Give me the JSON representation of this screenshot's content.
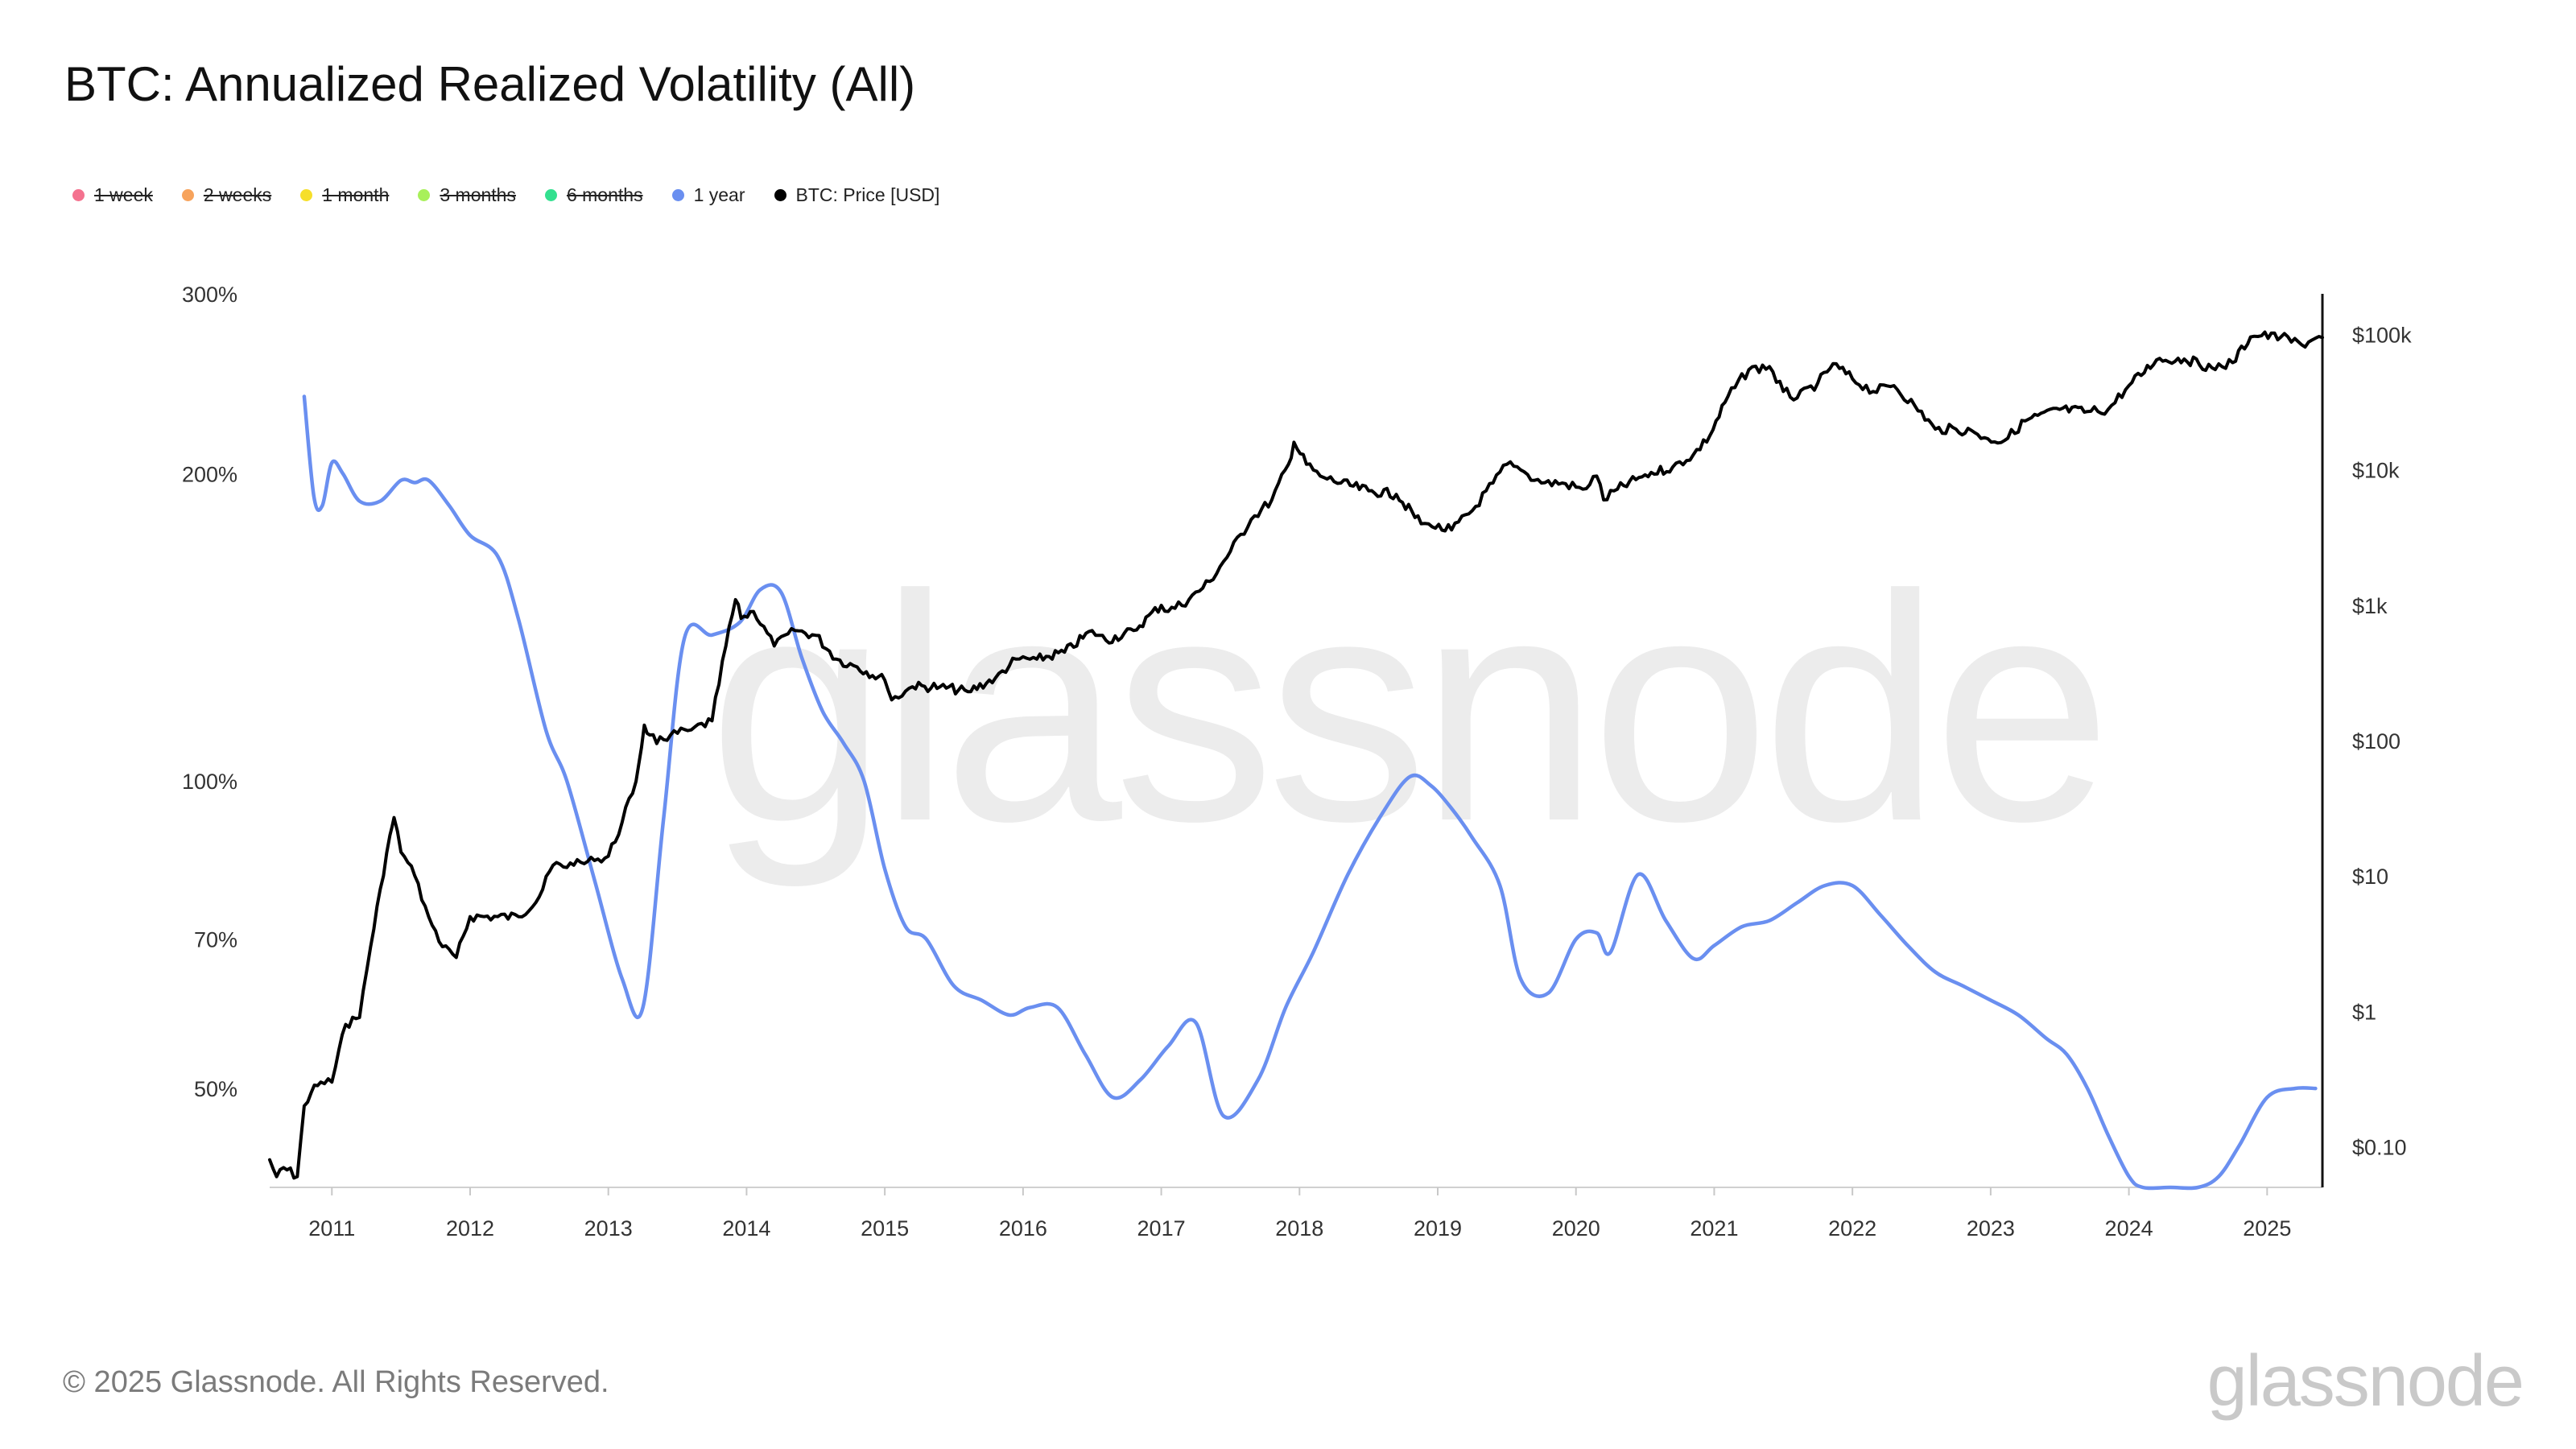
{
  "title": "BTC: Annualized Realized Volatility (All)",
  "legend": [
    {
      "label": "1 week",
      "color": "#f4728f",
      "active": false
    },
    {
      "label": "2 weeks",
      "color": "#f7a35c",
      "active": false
    },
    {
      "label": "1 month",
      "color": "#f6df2a",
      "active": false
    },
    {
      "label": "3 months",
      "color": "#a8f05a",
      "active": false
    },
    {
      "label": "6 months",
      "color": "#33e08f",
      "active": false
    },
    {
      "label": "1 year",
      "color": "#6a8ff0",
      "active": true
    },
    {
      "label": "BTC: Price [USD]",
      "color": "#000000",
      "active": true
    }
  ],
  "watermark": "glassnode",
  "footer": "© 2025 Glassnode. All Rights Reserved.",
  "brand": "glassnode",
  "chart_data": {
    "type": "line",
    "title": "BTC: Annualized Realized Volatility (All)",
    "x_range": [
      2010.55,
      2025.4
    ],
    "x_ticks": [
      "2011",
      "2012",
      "2013",
      "2014",
      "2015",
      "2016",
      "2017",
      "2018",
      "2019",
      "2020",
      "2021",
      "2022",
      "2023",
      "2024",
      "2025"
    ],
    "y_left": {
      "scale": "log",
      "range": [
        40,
        300
      ],
      "ticks": [
        {
          "value": 300,
          "label": "300%"
        },
        {
          "value": 200,
          "label": "200%"
        },
        {
          "value": 100,
          "label": "100%"
        },
        {
          "value": 70,
          "label": "70%"
        },
        {
          "value": 50,
          "label": "50%"
        }
      ]
    },
    "y_right": {
      "scale": "log",
      "range": [
        0.05,
        200000
      ],
      "ticks": [
        {
          "value": 100000,
          "label": "$100k"
        },
        {
          "value": 10000,
          "label": "$10k"
        },
        {
          "value": 1000,
          "label": "$1k"
        },
        {
          "value": 100,
          "label": "$100"
        },
        {
          "value": 10,
          "label": "$10"
        },
        {
          "value": 1,
          "label": "$1"
        },
        {
          "value": 0.1,
          "label": "$0.10"
        }
      ]
    },
    "series": [
      {
        "name": "1 year",
        "axis": "left",
        "color": "#6a8ff0",
        "x": [
          2010.8,
          2010.87,
          2010.93,
          2011.0,
          2011.08,
          2011.2,
          2011.35,
          2011.5,
          2011.6,
          2011.7,
          2011.85,
          2012.0,
          2012.2,
          2012.35,
          2012.55,
          2012.7,
          2012.9,
          2013.1,
          2013.25,
          2013.4,
          2013.55,
          2013.75,
          2013.95,
          2014.1,
          2014.25,
          2014.4,
          2014.55,
          2014.7,
          2014.85,
          2015.0,
          2015.15,
          2015.3,
          2015.5,
          2015.7,
          2015.9,
          2016.05,
          2016.25,
          2016.45,
          2016.65,
          2016.85,
          2017.05,
          2017.25,
          2017.45,
          2017.7,
          2017.9,
          2018.1,
          2018.35,
          2018.6,
          2018.8,
          2018.95,
          2019.1,
          2019.25,
          2019.45,
          2019.6,
          2019.8,
          2020.0,
          2020.15,
          2020.25,
          2020.45,
          2020.65,
          2020.85,
          2021.0,
          2021.2,
          2021.4,
          2021.6,
          2021.8,
          2022.0,
          2022.2,
          2022.4,
          2022.6,
          2022.8,
          2023.0,
          2023.2,
          2023.4,
          2023.55,
          2023.7,
          2023.85,
          2024.0,
          2024.1,
          2024.3,
          2024.5,
          2024.65,
          2024.8,
          2025.0,
          2025.2,
          2025.35
        ],
        "values": [
          238,
          190,
          186,
          205,
          200,
          188,
          188,
          197,
          196,
          197,
          186,
          174,
          166,
          144,
          112,
          100,
          80,
          64,
          60,
          92,
          138,
          139,
          143,
          154,
          153,
          132,
          117,
          109,
          100,
          82,
          72,
          70,
          63,
          61,
          59,
          60,
          60,
          54,
          49,
          51,
          55,
          58,
          47,
          51,
          60,
          68,
          81,
          93,
          101,
          99,
          94,
          88,
          79,
          64,
          62,
          70,
          71,
          68,
          81,
          73,
          67,
          69,
          72,
          73,
          76,
          79,
          79,
          74,
          69,
          65,
          63,
          61,
          59,
          56,
          54,
          50,
          45,
          41,
          40,
          40,
          40,
          41,
          44,
          49,
          50,
          50
        ]
      },
      {
        "name": "BTC: Price [USD]",
        "axis": "right",
        "color": "#000000",
        "x": [
          2010.55,
          2010.6,
          2010.65,
          2010.75,
          2010.8,
          2010.85,
          2010.92,
          2011.0,
          2011.1,
          2011.2,
          2011.28,
          2011.35,
          2011.42,
          2011.45,
          2011.5,
          2011.6,
          2011.7,
          2011.8,
          2011.9,
          2012.0,
          2012.1,
          2012.2,
          2012.35,
          2012.5,
          2012.6,
          2012.75,
          2012.9,
          2013.0,
          2013.1,
          2013.2,
          2013.26,
          2013.3,
          2013.35,
          2013.45,
          2013.6,
          2013.75,
          2013.85,
          2013.92,
          2013.96,
          2014.05,
          2014.2,
          2014.35,
          2014.5,
          2014.65,
          2014.8,
          2015.0,
          2015.05,
          2015.2,
          2015.4,
          2015.6,
          2015.8,
          2015.95,
          2016.1,
          2016.3,
          2016.5,
          2016.6,
          2016.8,
          2017.0,
          2017.05,
          2017.2,
          2017.35,
          2017.5,
          2017.65,
          2017.8,
          2017.92,
          2017.96,
          2018.05,
          2018.15,
          2018.3,
          2018.5,
          2018.7,
          2018.88,
          2018.96,
          2019.1,
          2019.25,
          2019.4,
          2019.5,
          2019.6,
          2019.75,
          2019.9,
          2020.05,
          2020.15,
          2020.2,
          2020.3,
          2020.5,
          2020.7,
          2020.85,
          2020.97,
          2021.1,
          2021.25,
          2021.4,
          2021.5,
          2021.6,
          2021.75,
          2021.86,
          2022.0,
          2022.15,
          2022.3,
          2022.45,
          2022.6,
          2022.75,
          2022.88,
          2022.98,
          2023.1,
          2023.25,
          2023.5,
          2023.7,
          2023.85,
          2024.0,
          2024.2,
          2024.4,
          2024.6,
          2024.75,
          2024.88,
          2024.96,
          2025.1,
          2025.25,
          2025.35,
          2025.4
        ],
        "values": [
          0.08,
          0.06,
          0.07,
          0.06,
          0.2,
          0.25,
          0.3,
          0.3,
          0.8,
          0.9,
          3,
          8,
          20,
          27,
          15,
          10,
          5,
          3,
          2.5,
          5,
          5,
          5,
          5,
          7,
          12,
          12,
          13,
          14,
          25,
          50,
          130,
          110,
          95,
          110,
          120,
          140,
          500,
          1100,
          800,
          900,
          500,
          650,
          600,
          400,
          350,
          280,
          200,
          250,
          250,
          230,
          290,
          400,
          400,
          450,
          650,
          550,
          650,
          1000,
          900,
          1100,
          1500,
          2500,
          4300,
          6000,
          11000,
          16000,
          11000,
          9000,
          8000,
          7000,
          6600,
          4000,
          3800,
          3600,
          5000,
          8000,
          11000,
          10000,
          8000,
          8000,
          7200,
          9000,
          6000,
          7200,
          9200,
          10500,
          13000,
          18000,
          35000,
          55000,
          58000,
          38000,
          34000,
          44000,
          61000,
          47000,
          38000,
          42000,
          30000,
          20000,
          20000,
          19000,
          17000,
          16500,
          23000,
          28000,
          27000,
          28000,
          42000,
          65000,
          66000,
          57000,
          62000,
          96000,
          98000,
          96000,
          84000,
          94000,
          95000
        ]
      }
    ]
  }
}
